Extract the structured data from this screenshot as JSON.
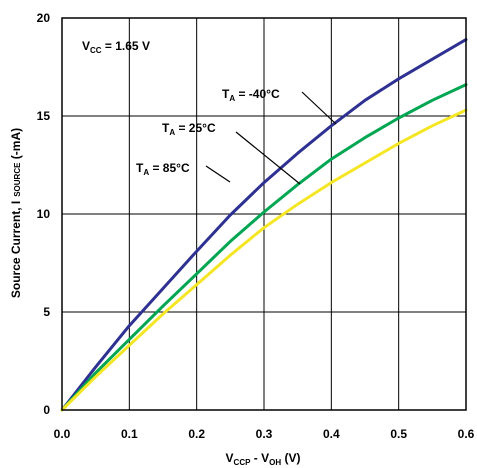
{
  "chart_data": {
    "type": "line",
    "title": "",
    "xlabel": {
      "main": "V",
      "sub1": "CCP",
      "mid": " - V",
      "sub2": "OH",
      "end": " (V)"
    },
    "ylabel": {
      "main": "Source Current, I",
      "sub": "SOURCE",
      "end": " (-mA)"
    },
    "xlim": [
      0,
      0.6
    ],
    "ylim": [
      0,
      20
    ],
    "xticks": [
      0,
      0.1,
      0.2,
      0.3,
      0.4,
      0.5,
      0.6
    ],
    "xtick_labels": [
      "0.0",
      "0.1",
      "0.2",
      "0.3",
      "0.4",
      "0.5",
      "0.6"
    ],
    "yticks": [
      0,
      5,
      10,
      15,
      20
    ],
    "ytick_labels": [
      "0",
      "5",
      "10",
      "15",
      "20"
    ],
    "grid": true,
    "condition": {
      "main": "V",
      "sub": "CC",
      "end": " = 1.65 V"
    },
    "series": [
      {
        "name": {
          "main": "T",
          "sub": "A",
          "end": " = -40°C"
        },
        "color": "#2e3192",
        "x": [
          0,
          0.05,
          0.1,
          0.15,
          0.2,
          0.25,
          0.3,
          0.35,
          0.4,
          0.45,
          0.5,
          0.55,
          0.6
        ],
        "y": [
          0,
          2.2,
          4.3,
          6.2,
          8.1,
          9.95,
          11.6,
          13.1,
          14.5,
          15.8,
          16.9,
          17.9,
          18.9
        ]
      },
      {
        "name": {
          "main": "T",
          "sub": "A",
          "end": " = 25°C"
        },
        "color": "#00a651",
        "x": [
          0,
          0.05,
          0.1,
          0.15,
          0.2,
          0.25,
          0.3,
          0.35,
          0.4,
          0.45,
          0.5,
          0.55,
          0.6
        ],
        "y": [
          0,
          1.9,
          3.6,
          5.3,
          6.95,
          8.6,
          10.1,
          11.5,
          12.8,
          13.9,
          14.9,
          15.8,
          16.6
        ]
      },
      {
        "name": {
          "main": "T",
          "sub": "A",
          "end": " = 85°C"
        },
        "color": "#f5e625",
        "x": [
          0,
          0.05,
          0.1,
          0.15,
          0.2,
          0.25,
          0.3,
          0.35,
          0.4,
          0.45,
          0.5,
          0.55,
          0.6
        ],
        "y": [
          0,
          1.7,
          3.3,
          4.9,
          6.4,
          7.9,
          9.3,
          10.5,
          11.6,
          12.6,
          13.6,
          14.5,
          15.3
        ]
      }
    ]
  }
}
